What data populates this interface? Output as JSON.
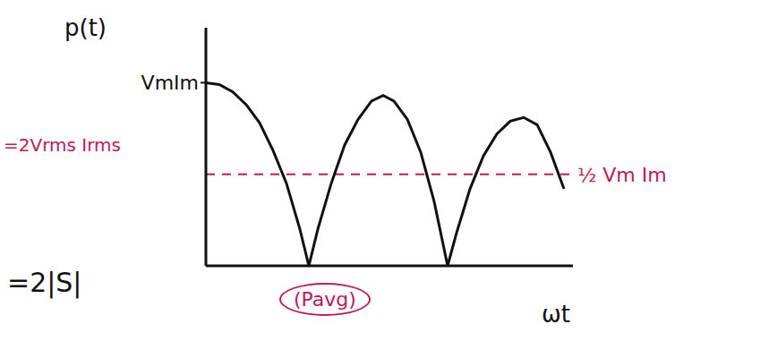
{
  "chart_data": {
    "type": "line",
    "x_label": "ωt",
    "y_label": "p(t)",
    "x": [
      0,
      0.15,
      0.3,
      0.45,
      0.6,
      0.75,
      0.9,
      1.05,
      1.15,
      1.25,
      1.4,
      1.55,
      1.7,
      1.85,
      1.98,
      2.1,
      2.25,
      2.4,
      2.55,
      2.7,
      2.8,
      2.95,
      3.1,
      3.25,
      3.4,
      3.55,
      3.7,
      3.85,
      4.0
    ],
    "values": [
      1.0,
      0.99,
      0.95,
      0.88,
      0.78,
      0.63,
      0.45,
      0.2,
      0,
      0.2,
      0.45,
      0.66,
      0.8,
      0.9,
      0.93,
      0.9,
      0.8,
      0.62,
      0.35,
      0,
      0.18,
      0.42,
      0.6,
      0.72,
      0.79,
      0.81,
      0.77,
      0.62,
      0.42
    ],
    "color": "#111111",
    "marker": "none",
    "line_style": "solid",
    "xlim": [
      0,
      4.1
    ],
    "ylim": [
      0,
      1.3
    ],
    "yticks": [
      {
        "value": 1,
        "label": "VmIm"
      }
    ],
    "tick_labels": "y",
    "grid": false,
    "reference_line": {
      "value": 0.5,
      "label": "½ Vm Im",
      "color": "#c2185b",
      "line_style": "dashed"
    },
    "annotations": [
      {
        "text": "=2Vrms Irms",
        "color": "#c2185b"
      },
      {
        "text": "=2|S|",
        "color": "#111111"
      },
      {
        "text": "(Pavg)",
        "color": "#c2185b"
      }
    ]
  }
}
